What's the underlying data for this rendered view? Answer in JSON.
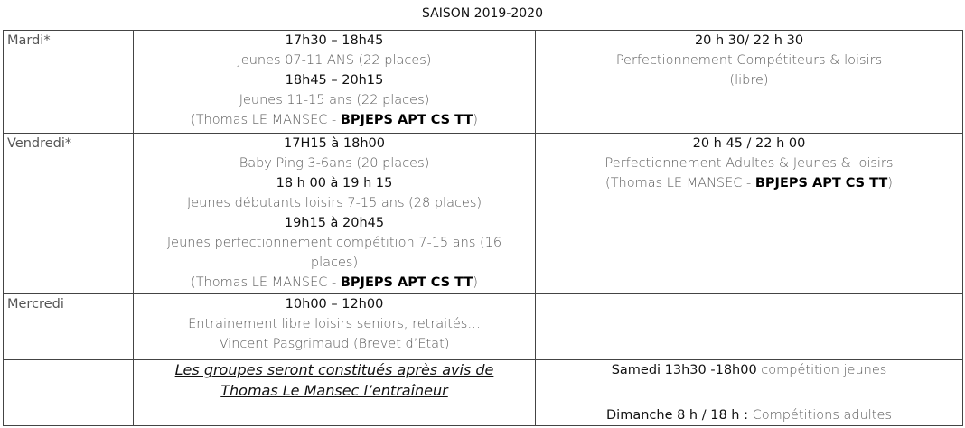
{
  "title": "SAISON 2019-2020",
  "rows": [
    {
      "day": "Mardi*",
      "cells": [
        [
          [
            {
              "text": "17h30 – 18h45",
              "style": "dark"
            }
          ],
          [
            {
              "text": "Jeunes 07-11 ANS (22 places)",
              "style": "gray"
            }
          ],
          [
            {
              "text": "18h45 – 20h15",
              "style": "dark"
            }
          ],
          [
            {
              "text": "Jeunes 11-15 ans (22 places)",
              "style": "gray"
            }
          ],
          [
            {
              "text": "(Thomas LE MANSEC - ",
              "style": "gray"
            },
            {
              "text": "BPJEPS APT CS TT",
              "style": "bold"
            },
            {
              "text": ")",
              "style": "gray"
            }
          ]
        ],
        [
          [
            {
              "text": "20 h 30/ 22 h 30",
              "style": "dark"
            }
          ],
          [
            {
              "text": "Perfectionnement Compétiteurs & loisirs",
              "style": "gray"
            }
          ],
          [
            {
              "text": "(libre)",
              "style": "gray"
            }
          ]
        ]
      ]
    },
    {
      "day": "Vendredi*",
      "cells": [
        [
          [
            {
              "text": "17H15 à 18h00",
              "style": "dark"
            }
          ],
          [
            {
              "text": "Baby Ping 3-6ans (20 places)",
              "style": "gray"
            }
          ],
          [
            {
              "text": "18 h 00 à 19 h 15",
              "style": "dark"
            }
          ],
          [
            {
              "text": "Jeunes débutants loisirs 7-15 ans (28 places)",
              "style": "gray"
            }
          ],
          [
            {
              "text": "19h15 à 20h45",
              "style": "dark"
            }
          ],
          [
            {
              "text": "Jeunes perfectionnement compétition 7-15 ans (16",
              "style": "gray"
            }
          ],
          [
            {
              "text": "places)",
              "style": "gray"
            }
          ],
          [
            {
              "text": "(Thomas LE MANSEC - ",
              "style": "gray"
            },
            {
              "text": "BPJEPS APT CS TT",
              "style": "bold"
            },
            {
              "text": ")",
              "style": "gray"
            }
          ]
        ],
        [
          [
            {
              "text": "20 h 45 / 22 h 00",
              "style": "dark"
            }
          ],
          [
            {
              "text": "Perfectionnement Adultes & Jeunes & loisirs",
              "style": "gray"
            }
          ],
          [
            {
              "text": "(Thomas LE MANSEC - ",
              "style": "gray"
            },
            {
              "text": "BPJEPS APT CS TT",
              "style": "bold"
            },
            {
              "text": ")",
              "style": "gray"
            }
          ]
        ]
      ]
    },
    {
      "day": "Mercredi",
      "cells": [
        [
          [
            {
              "text": "10h00 – 12h00",
              "style": "dark"
            }
          ],
          [
            {
              "text": "Entrainement libre loisirs seniors, retraités…",
              "style": "gray"
            }
          ],
          [
            {
              "text": "Vincent Pasgrimaud (Brevet d’Etat)",
              "style": "gray"
            }
          ]
        ],
        []
      ]
    },
    {
      "cells": [
        [
          [
            {
              "text": "Les groupes seront constitués après avis de",
              "style": "italic-underline"
            }
          ],
          [
            {
              "text": "Thomas Le Mansec l’entraîneur",
              "style": "italic-underline"
            }
          ]
        ],
        [
          [
            {
              "text": "Samedi 13h30 -18h00",
              "style": "dark"
            },
            {
              "text": " compétition jeunes",
              "style": "gray"
            }
          ]
        ]
      ]
    },
    {
      "cells": [
        [],
        [
          [
            {
              "text": "Dimanche 8 h / 18 h :",
              "style": "dark"
            },
            {
              "text": " Compétitions adultes",
              "style": "gray"
            }
          ]
        ]
      ]
    }
  ]
}
